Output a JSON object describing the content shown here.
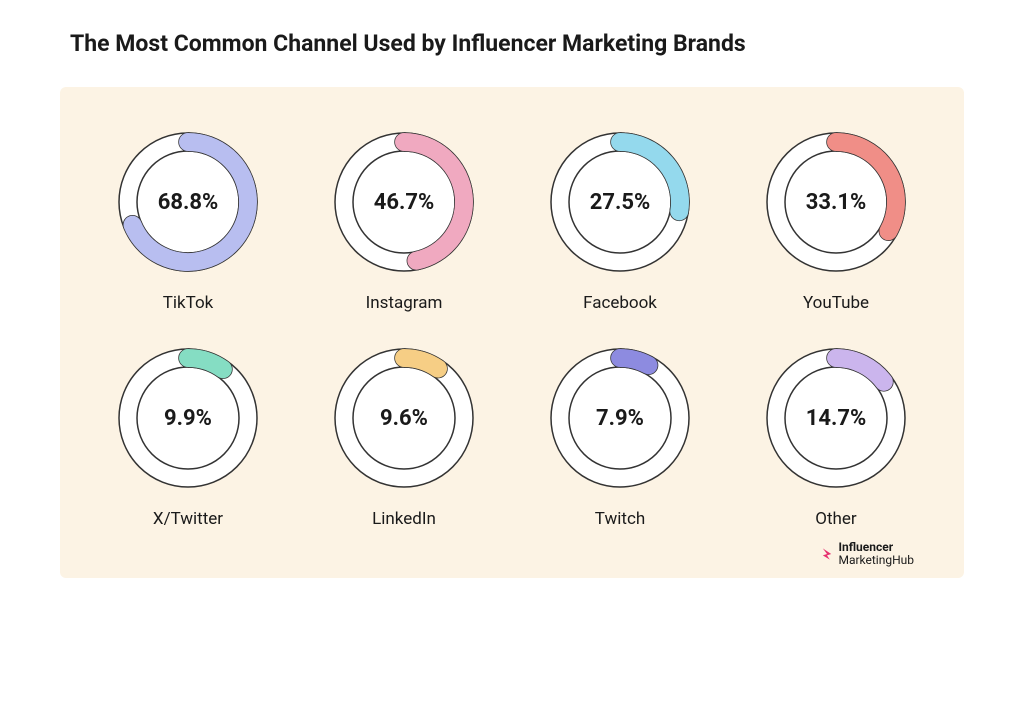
{
  "title": "The Most Common Channel Used by Influencer Marketing Brands",
  "panel": {
    "background": "#fcf3e4",
    "donut": {
      "size": 150,
      "radius": 60,
      "stroke_width": 18,
      "inner_fill": "#ffffff",
      "track_color": "#ffffff",
      "track_border": "#333333",
      "track_border_width": 1.5,
      "start_angle_deg": 0
    },
    "items": [
      {
        "label": "TikTok",
        "value": 68.8,
        "color": "#b8bef0"
      },
      {
        "label": "Instagram",
        "value": 46.7,
        "color": "#f0a9c0"
      },
      {
        "label": "Facebook",
        "value": 27.5,
        "color": "#94d9ed"
      },
      {
        "label": "YouTube",
        "value": 33.1,
        "color": "#f08e87"
      },
      {
        "label": "X/Twitter",
        "value": 9.9,
        "color": "#85ddc3"
      },
      {
        "label": "LinkedIn",
        "value": 9.6,
        "color": "#f6ce85"
      },
      {
        "label": "Twitch",
        "value": 7.9,
        "color": "#8d8be0"
      },
      {
        "label": "Other",
        "value": 14.7,
        "color": "#cbb5ed"
      }
    ]
  },
  "brand": {
    "line1": "Influencer",
    "line2": "MarketingHub",
    "mark_color": "#e6316f"
  }
}
